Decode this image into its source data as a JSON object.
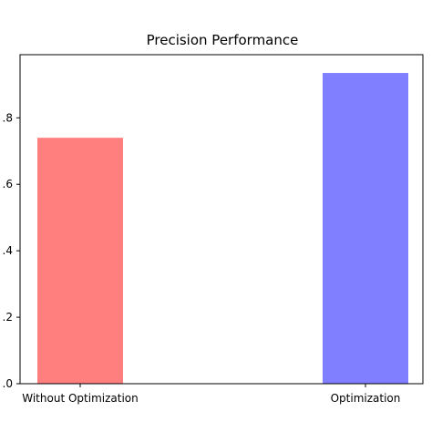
{
  "chart_data": {
    "type": "bar",
    "title": "Precision Performance",
    "xlabel": "",
    "ylabel": "",
    "categories": [
      "Without Optimization",
      "Optimization"
    ],
    "values": [
      0.74,
      0.935
    ],
    "colors": [
      "#ff7f7f",
      "#7f7fff"
    ],
    "ylim": [
      0.0,
      0.99
    ],
    "y_ticks": [
      0.0,
      0.2,
      0.4,
      0.6,
      0.8
    ],
    "y_tick_labels": [
      ".0",
      ".2",
      ".4",
      ".6",
      ".8"
    ],
    "grid": false,
    "legend": "none"
  }
}
